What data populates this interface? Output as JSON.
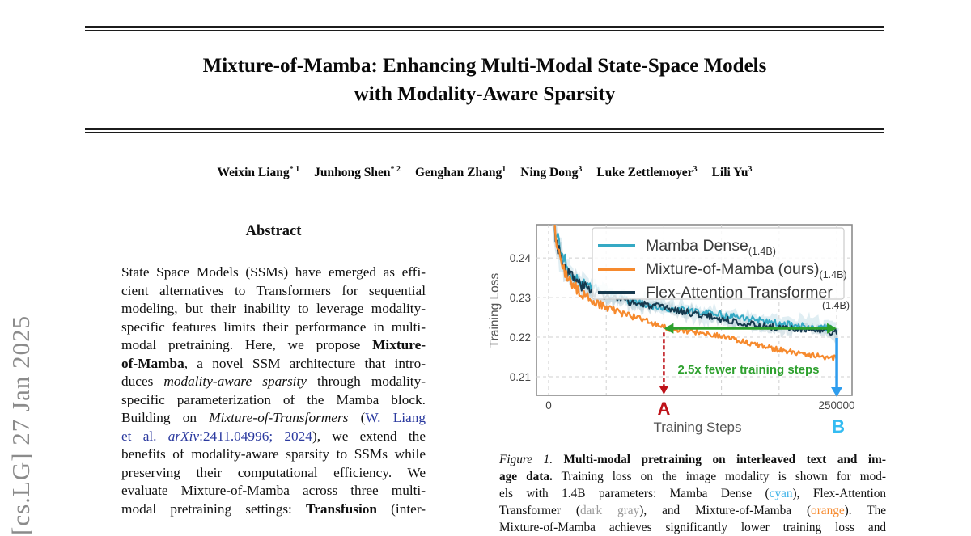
{
  "arxiv_sidebar": {
    "text": "[cs.LG] 27 Jan 2025"
  },
  "header": {
    "title_line1": "Mixture-of-Mamba: Enhancing Multi-Modal State-Space Models",
    "title_line2": "with Modality-Aware Sparsity"
  },
  "authors": [
    {
      "name": "Weixin Liang",
      "sup": "* 1"
    },
    {
      "name": "Junhong Shen",
      "sup": "* 2"
    },
    {
      "name": "Genghan Zhang",
      "sup": "1"
    },
    {
      "name": "Ning Dong",
      "sup": "3"
    },
    {
      "name": "Luke Zettlemoyer",
      "sup": "3"
    },
    {
      "name": "Lili Yu",
      "sup": "3"
    }
  ],
  "abstract": {
    "heading": "Abstract",
    "lines": [
      [
        {
          "t": "State Space Models (SSMs) have emerged as effi-"
        }
      ],
      [
        {
          "t": "cient alternatives to Transformers for sequential"
        }
      ],
      [
        {
          "t": "modeling, but their inability to leverage modality-"
        }
      ],
      [
        {
          "t": "specific features limits their performance in multi-"
        }
      ],
      [
        {
          "t": "modal pretraining. Here, we propose "
        },
        {
          "t": "Mixture-",
          "s": "b"
        }
      ],
      [
        {
          "t": "of-Mamba",
          "s": "b"
        },
        {
          "t": ", a novel SSM architecture that intro-"
        }
      ],
      [
        {
          "t": "duces "
        },
        {
          "t": "modality-aware sparsity",
          "s": "i"
        },
        {
          "t": " through modality-"
        }
      ],
      [
        {
          "t": "specific parameterization of the Mamba block."
        }
      ],
      [
        {
          "t": "Building on "
        },
        {
          "t": "Mixture-of-Transformers",
          "s": "i"
        },
        {
          "t": " ("
        },
        {
          "t": "W. Liang",
          "s": "link"
        }
      ],
      [
        {
          "t": "et al. ",
          "s": "link"
        },
        {
          "t": "arXiv",
          "s": "ilink"
        },
        {
          "t": ":2411.04996; 2024",
          "s": "link"
        },
        {
          "t": "), we extend the"
        }
      ],
      [
        {
          "t": "benefits of modality-aware sparsity to SSMs while"
        }
      ],
      [
        {
          "t": "preserving their computational efficiency. We"
        }
      ],
      [
        {
          "t": "evaluate Mixture-of-Mamba across three multi-"
        }
      ],
      [
        {
          "t": "modal pretraining settings: "
        },
        {
          "t": "Transfusion",
          "s": "b"
        },
        {
          "t": " (inter-"
        }
      ]
    ]
  },
  "figure": {
    "caption_lines": [
      [
        {
          "t": "Figure 1.",
          "s": "i"
        },
        {
          "t": " "
        },
        {
          "t": "Multi-modal pretraining on interleaved text and im-",
          "s": "b"
        }
      ],
      [
        {
          "t": "age data.",
          "s": "b"
        },
        {
          "t": " Training loss on the image modality is shown for mod-"
        }
      ],
      [
        {
          "t": "els with 1.4B parameters: Mamba Dense ("
        },
        {
          "t": "cyan",
          "s": "cyan"
        },
        {
          "t": "), Flex-Attention"
        }
      ],
      [
        {
          "t": "Transformer ("
        },
        {
          "t": "dark gray",
          "s": "gray"
        },
        {
          "t": "), and Mixture-of-Mamba ("
        },
        {
          "t": "orange",
          "s": "orange"
        },
        {
          "t": "). The"
        }
      ],
      [
        {
          "t": "Mixture-of-Mamba achieves significantly lower training loss and"
        }
      ]
    ]
  },
  "chart_data": {
    "type": "line",
    "xlabel": "Training Steps",
    "ylabel": "Training Loss",
    "xlim": [
      -10500,
      263300
    ],
    "ylim": [
      0.2053,
      0.2484
    ],
    "xticks": [
      {
        "value": 0,
        "label": "0"
      },
      {
        "value": 250000,
        "label": "250000"
      }
    ],
    "xgrid": [
      0,
      50000,
      100000,
      150000,
      200000,
      250000
    ],
    "yticks": [
      {
        "value": 0.21,
        "label": "0.21"
      },
      {
        "value": 0.22,
        "label": "0.22"
      },
      {
        "value": 0.23,
        "label": "0.23"
      },
      {
        "value": 0.24,
        "label": "0.24"
      }
    ],
    "grid": true,
    "legend_position": "upper center",
    "series": [
      {
        "name": "Mamba Dense",
        "subscript": "(1.4B)",
        "color": "#35A9C4",
        "raw_color": "#C6E0EA",
        "noise": 0.00085,
        "anchors": [
          [
            5000,
            0.2487
          ],
          [
            7000,
            0.245
          ],
          [
            9000,
            0.2423
          ],
          [
            12000,
            0.2398
          ],
          [
            16000,
            0.2375
          ],
          [
            20000,
            0.2358
          ],
          [
            25000,
            0.2345
          ],
          [
            30000,
            0.2336
          ],
          [
            40000,
            0.2322
          ],
          [
            50000,
            0.231
          ],
          [
            60000,
            0.2301
          ],
          [
            75000,
            0.2291
          ],
          [
            90000,
            0.2282
          ],
          [
            105000,
            0.2274
          ],
          [
            120000,
            0.2267
          ],
          [
            135000,
            0.2261
          ],
          [
            150000,
            0.2254
          ],
          [
            165000,
            0.2248
          ],
          [
            180000,
            0.2243
          ],
          [
            195000,
            0.2238
          ],
          [
            210000,
            0.2233
          ],
          [
            225000,
            0.223
          ],
          [
            240000,
            0.2227
          ],
          [
            250000,
            0.2225
          ]
        ]
      },
      {
        "name": "Mixture-of-Mamba (ours)",
        "subscript": "(1.4B)",
        "color": "#F68A2E",
        "raw_color": null,
        "noise": 0.0007,
        "anchors": [
          [
            5000,
            0.2487
          ],
          [
            7000,
            0.2435
          ],
          [
            9000,
            0.2405
          ],
          [
            12000,
            0.2378
          ],
          [
            16000,
            0.2352
          ],
          [
            20000,
            0.2335
          ],
          [
            25000,
            0.232
          ],
          [
            30000,
            0.2308
          ],
          [
            40000,
            0.2291
          ],
          [
            50000,
            0.2278
          ],
          [
            60000,
            0.2267
          ],
          [
            75000,
            0.2253
          ],
          [
            90000,
            0.2238
          ],
          [
            100000,
            0.2224
          ],
          [
            110000,
            0.2218
          ],
          [
            125000,
            0.2211
          ],
          [
            140000,
            0.2204
          ],
          [
            155000,
            0.2196
          ],
          [
            170000,
            0.2188
          ],
          [
            185000,
            0.218
          ],
          [
            200000,
            0.2172
          ],
          [
            215000,
            0.2164
          ],
          [
            230000,
            0.2156
          ],
          [
            240000,
            0.215
          ],
          [
            250000,
            0.2146
          ]
        ]
      },
      {
        "name": "Flex-Attention Transformer",
        "subscript": "(1.4B)",
        "color": "#16394E",
        "raw_color": "#A5BDC9",
        "noise": 0.00085,
        "anchors": [
          [
            5000,
            0.2487
          ],
          [
            7000,
            0.2448
          ],
          [
            9000,
            0.242
          ],
          [
            12000,
            0.2395
          ],
          [
            16000,
            0.2372
          ],
          [
            20000,
            0.2355
          ],
          [
            25000,
            0.2342
          ],
          [
            30000,
            0.2332
          ],
          [
            40000,
            0.2318
          ],
          [
            50000,
            0.2306
          ],
          [
            60000,
            0.2297
          ],
          [
            75000,
            0.2286
          ],
          [
            90000,
            0.2277
          ],
          [
            105000,
            0.2268
          ],
          [
            120000,
            0.226
          ],
          [
            135000,
            0.2253
          ],
          [
            150000,
            0.2246
          ],
          [
            165000,
            0.224
          ],
          [
            180000,
            0.2234
          ],
          [
            195000,
            0.2228
          ],
          [
            210000,
            0.2222
          ],
          [
            225000,
            0.2217
          ],
          [
            240000,
            0.2212
          ],
          [
            250000,
            0.2208
          ]
        ]
      }
    ],
    "annotations": {
      "green_arrow": {
        "x1": 100000,
        "x2": 250000,
        "y": 0.2222,
        "label": "2.5x fewer training steps",
        "color": "#2DA02D"
      },
      "marker_a": {
        "x": 100000,
        "label": "A",
        "color": "#BE1219"
      },
      "marker_b": {
        "x": 250000,
        "label": "B",
        "color": "#35BCF2",
        "line_color": "#2E9DEE"
      }
    }
  }
}
